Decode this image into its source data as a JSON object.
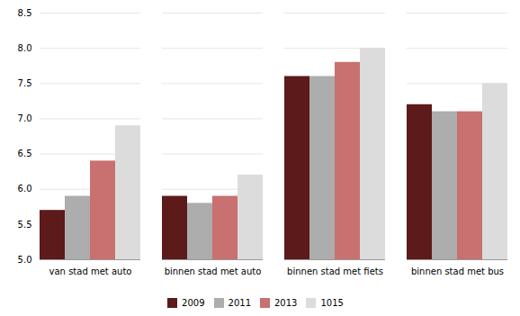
{
  "chart_data": {
    "type": "bar",
    "categories": [
      "van stad met auto",
      "binnen stad met auto",
      "binnen stad met fiets",
      "binnen stad met bus"
    ],
    "series": [
      {
        "name": "2009",
        "color": "#5C1A1A",
        "values": [
          5.7,
          5.9,
          7.6,
          7.2
        ]
      },
      {
        "name": "2011",
        "color": "#ADADAD",
        "values": [
          5.9,
          5.8,
          7.6,
          7.1
        ]
      },
      {
        "name": "2013",
        "color": "#C97070",
        "values": [
          6.4,
          5.9,
          7.8,
          7.1
        ]
      },
      {
        "name": "1015",
        "color": "#DCDCDC",
        "values": [
          6.9,
          6.2,
          8.0,
          7.5
        ]
      }
    ],
    "ylim": [
      5.0,
      8.5
    ],
    "yticks": [
      {
        "value": 5.0,
        "label": "5.0"
      },
      5.5,
      {
        "value": 6.0,
        "label": "6.0"
      },
      6.5,
      {
        "value": 7.0,
        "label": "7.0"
      },
      7.5,
      {
        "value": 8.0,
        "label": "8.0"
      },
      8.5
    ],
    "grid": true,
    "legend": "bottom"
  }
}
